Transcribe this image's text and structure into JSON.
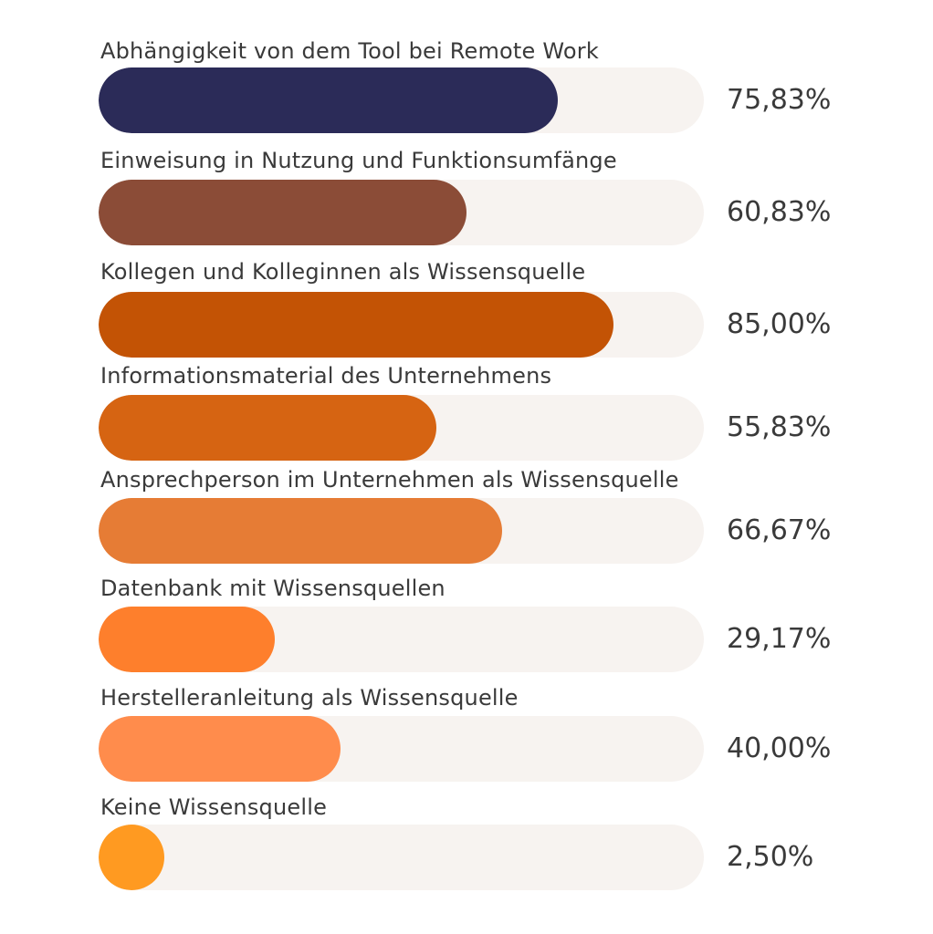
{
  "chart_data": {
    "type": "bar",
    "orientation": "horizontal",
    "ylim": [
      0,
      100
    ],
    "track_color": "#f7f3f0",
    "categories": [
      "Abhängigkeit von dem Tool bei Remote Work",
      "Einweisung in Nutzung und Funktionsumfänge",
      "Kollegen und Kolleginnen als Wissensquelle",
      "Informationsmaterial des Unternehmens",
      "Ansprechperson im Unternehmen als Wissensquelle",
      "Datenbank mit Wissensquellen",
      "Herstelleranleitung als Wissensquelle",
      "Keine Wissensquelle"
    ],
    "values": [
      75.83,
      60.83,
      85.0,
      55.83,
      66.67,
      29.17,
      40.0,
      2.5
    ],
    "value_labels": [
      "75,83%",
      "60,83%",
      "85,00%",
      "55,83%",
      "66,67%",
      "29,17%",
      "40,00%",
      "2,50%"
    ],
    "colors": [
      "#2b2b58",
      "#8b4c37",
      "#c35305",
      "#d66412",
      "#e67c35",
      "#fe7f2c",
      "#ff8c4c",
      "#ff9a21"
    ]
  }
}
